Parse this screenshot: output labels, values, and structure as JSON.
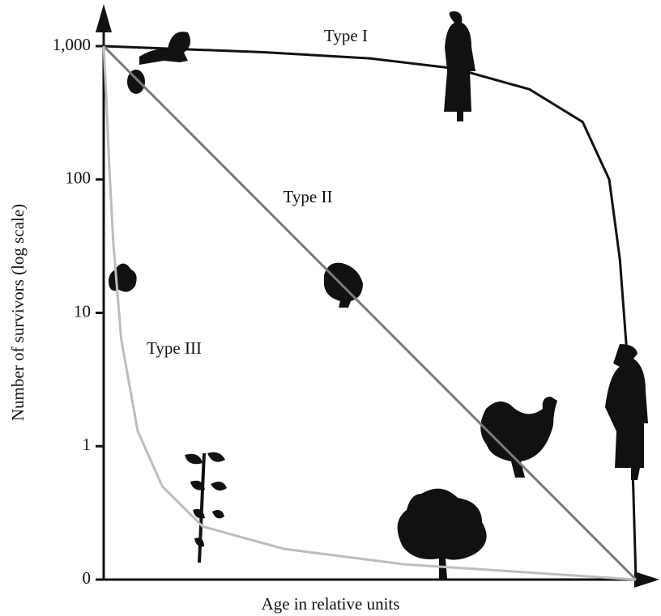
{
  "chart_data": {
    "type": "line",
    "xlabel": "Age in relative units",
    "ylabel": "Number of survivors (log scale)",
    "yscale": "log",
    "xlim": [
      0,
      100
    ],
    "ylim": [
      0.1,
      1000
    ],
    "yticks": [
      {
        "value": 0.1,
        "label": "0"
      },
      1,
      10,
      {
        "value": 100,
        "label": "100"
      },
      {
        "value": 1000,
        "label": "1,000"
      }
    ],
    "series": [
      {
        "name": "Type I",
        "color": "#111111",
        "x": [
          0,
          30,
          50,
          66,
          80,
          90,
          95,
          97,
          98.5,
          99.5,
          100
        ],
        "values": [
          1000,
          900,
          810,
          680,
          475,
          270,
          100,
          25,
          4,
          0.5,
          0.1
        ]
      },
      {
        "name": "Type II",
        "color": "#7a7a7a",
        "x": [
          0,
          25,
          50,
          75,
          100
        ],
        "values": [
          1000,
          100,
          10,
          1,
          0.1
        ]
      },
      {
        "name": "Type III",
        "color": "#bdbdbd",
        "x": [
          0,
          0.5,
          1,
          1.8,
          3.3,
          6.4,
          11,
          18.6,
          33.8,
          56.6,
          100
        ],
        "values": [
          1000,
          400,
          135,
          34,
          6.3,
          1.3,
          0.5,
          0.25,
          0.17,
          0.13,
          0.1
        ]
      }
    ]
  }
}
